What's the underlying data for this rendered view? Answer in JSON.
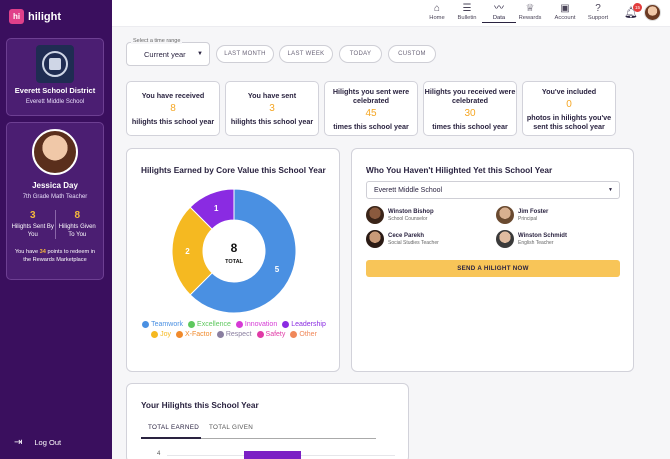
{
  "brand": {
    "mark": "hi",
    "name": "hilight"
  },
  "district": {
    "name": "Everett School District",
    "school": "Everett Middle School"
  },
  "profile": {
    "name": "Jessica Day",
    "role": "7th Grade Math Teacher",
    "sent_count": "3",
    "sent_label": "Hilights Sent By You",
    "given_count": "8",
    "given_label": "Hilights Given To You",
    "points_prefix": "You have",
    "points": "34",
    "points_suffix": "points to redeem in the Rewards Marketplace"
  },
  "logout": {
    "label": "Log Out"
  },
  "nav": [
    {
      "label": "Home",
      "icon": "home-icon",
      "glyph": "⌂"
    },
    {
      "label": "Bulletin",
      "icon": "list-icon",
      "glyph": "☰"
    },
    {
      "label": "Data",
      "icon": "trend-icon",
      "glyph": "〰"
    },
    {
      "label": "Rewards",
      "icon": "trophy-icon",
      "glyph": "♕"
    },
    {
      "label": "Account",
      "icon": "account-icon",
      "glyph": "▣"
    },
    {
      "label": "Support",
      "icon": "help-icon",
      "glyph": "?"
    }
  ],
  "notifications": {
    "count": "15"
  },
  "time_range": {
    "label": "Select a time range",
    "selected": "Current year",
    "chips": [
      "LAST MONTH",
      "LAST WEEK",
      "TODAY",
      "CUSTOM"
    ]
  },
  "summary_cards": [
    {
      "top": "You have received",
      "value": "8",
      "bottom": "hilights this school year"
    },
    {
      "top": "You have sent",
      "value": "3",
      "bottom": "hilights this school year"
    },
    {
      "top": "Hilights you sent were celebrated",
      "value": "45",
      "bottom": "times this school year"
    },
    {
      "top": "Hilights you received were celebrated",
      "value": "30",
      "bottom": "times this school year"
    },
    {
      "top": "You've included",
      "value": "0",
      "bottom": "photos in hilights you've sent this school year"
    }
  ],
  "core_values": {
    "title": "Hilights Earned by Core Value this School Year",
    "total": "8",
    "total_label": "TOTAL",
    "legend": [
      {
        "label": "Teamwork",
        "color": "#4a90e2"
      },
      {
        "label": "Excellence",
        "color": "#5ec85e"
      },
      {
        "label": "Innovation",
        "color": "#d63ad6"
      },
      {
        "label": "Leadership",
        "color": "#8a2be2"
      },
      {
        "label": "Joy",
        "color": "#f5b921"
      },
      {
        "label": "X-Factor",
        "color": "#f08a2c"
      },
      {
        "label": "Respect",
        "color": "#8a7fa0"
      },
      {
        "label": "Safety",
        "color": "#e03aa6"
      },
      {
        "label": "Other",
        "color": "#f0885a"
      }
    ]
  },
  "chart_data": [
    {
      "type": "pie",
      "title": "Hilights Earned by Core Value this School Year",
      "categories": [
        "Teamwork",
        "Joy",
        "Leadership"
      ],
      "values": [
        5,
        2,
        1
      ],
      "colors": [
        "#4a90e2",
        "#f5b921",
        "#8a2be2"
      ]
    }
  ],
  "unhilighted": {
    "title": "Who You Haven't Hilighted Yet this School Year",
    "school": "Everett Middle School",
    "people": [
      {
        "name": "Winston Bishop",
        "role": "School Counselor"
      },
      {
        "name": "Jim Foster",
        "role": "Principal"
      },
      {
        "name": "Cece Parekh",
        "role": "Social Studies Teacher"
      },
      {
        "name": "Winston Schmidt",
        "role": "English Teacher"
      }
    ],
    "button": "SEND A HILIGHT NOW"
  },
  "your_hilights": {
    "title": "Your Hilights this School Year",
    "tabs": [
      "TOTAL EARNED",
      "TOTAL GIVEN"
    ],
    "y_tick": "4"
  }
}
